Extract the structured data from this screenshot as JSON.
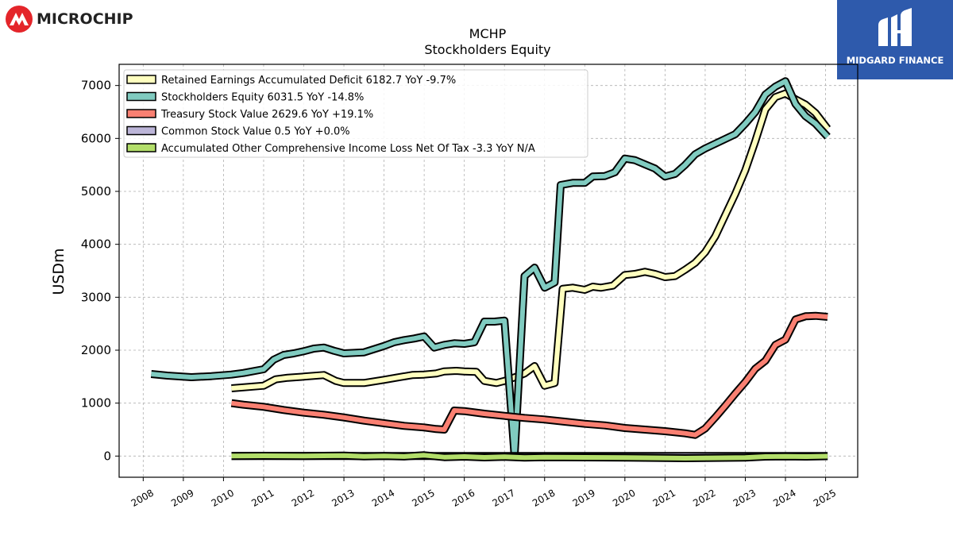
{
  "header": {
    "logo_text": "MICROCHIP",
    "brand_text": "MIDGARD FINANCE"
  },
  "colors": {
    "retained": "#ffffbf",
    "equity": "#80cbc0",
    "treasury": "#fa8072",
    "common": "#bcb5d8",
    "aoci": "#b3de6a",
    "brand_bg": "#2e5aac",
    "logo_red": "#e4252a"
  },
  "chart_data": {
    "type": "line",
    "title": "MCHP",
    "subtitle": "Stockholders  Equity",
    "xlabel": "",
    "ylabel": "USDm",
    "xlim": [
      2007.4,
      2025.8
    ],
    "ylim": [
      -400,
      7400
    ],
    "x_ticks": [
      "2008",
      "2009",
      "2010",
      "2011",
      "2012",
      "2013",
      "2014",
      "2015",
      "2016",
      "2017",
      "2018",
      "2019",
      "2020",
      "2021",
      "2022",
      "2023",
      "2024",
      "2025"
    ],
    "y_ticks": [
      0,
      1000,
      2000,
      3000,
      4000,
      5000,
      6000,
      7000
    ],
    "grid": true,
    "legend_position": "top-left",
    "series": [
      {
        "name": "Retained Earnings Accumulated Deficit  6182.7 YoY -9.7%",
        "color_key": "retained",
        "points": [
          [
            2010.2,
            1280
          ],
          [
            2011.0,
            1330
          ],
          [
            2011.3,
            1450
          ],
          [
            2011.6,
            1480
          ],
          [
            2012.0,
            1500
          ],
          [
            2012.5,
            1530
          ],
          [
            2012.8,
            1420
          ],
          [
            2013.0,
            1380
          ],
          [
            2013.5,
            1380
          ],
          [
            2014.0,
            1440
          ],
          [
            2014.3,
            1480
          ],
          [
            2014.7,
            1530
          ],
          [
            2015.0,
            1540
          ],
          [
            2015.3,
            1560
          ],
          [
            2015.5,
            1600
          ],
          [
            2015.8,
            1610
          ],
          [
            2016.0,
            1600
          ],
          [
            2016.3,
            1590
          ],
          [
            2016.5,
            1420
          ],
          [
            2016.8,
            1380
          ],
          [
            2017.0,
            1420
          ],
          [
            2017.3,
            1500
          ],
          [
            2017.5,
            1560
          ],
          [
            2017.75,
            1700
          ],
          [
            2018.0,
            1330
          ],
          [
            2018.25,
            1380
          ],
          [
            2018.45,
            3160
          ],
          [
            2018.7,
            3180
          ],
          [
            2019.0,
            3140
          ],
          [
            2019.2,
            3200
          ],
          [
            2019.4,
            3180
          ],
          [
            2019.7,
            3220
          ],
          [
            2020.0,
            3420
          ],
          [
            2020.25,
            3440
          ],
          [
            2020.5,
            3480
          ],
          [
            2020.75,
            3440
          ],
          [
            2021.0,
            3380
          ],
          [
            2021.25,
            3400
          ],
          [
            2021.5,
            3520
          ],
          [
            2021.75,
            3650
          ],
          [
            2022.0,
            3850
          ],
          [
            2022.25,
            4150
          ],
          [
            2022.5,
            4550
          ],
          [
            2022.75,
            4950
          ],
          [
            2023.0,
            5400
          ],
          [
            2023.25,
            5950
          ],
          [
            2023.5,
            6550
          ],
          [
            2023.75,
            6780
          ],
          [
            2024.0,
            6850
          ],
          [
            2024.25,
            6740
          ],
          [
            2024.5,
            6640
          ],
          [
            2024.75,
            6480
          ],
          [
            2025.05,
            6183
          ]
        ]
      },
      {
        "name": "Stockholders Equity  6031.5 YoY -14.8%",
        "color_key": "equity",
        "points": [
          [
            2008.2,
            1550
          ],
          [
            2008.6,
            1520
          ],
          [
            2009.2,
            1490
          ],
          [
            2009.7,
            1510
          ],
          [
            2010.2,
            1540
          ],
          [
            2010.5,
            1570
          ],
          [
            2011.0,
            1640
          ],
          [
            2011.25,
            1820
          ],
          [
            2011.5,
            1910
          ],
          [
            2011.75,
            1940
          ],
          [
            2012.0,
            1980
          ],
          [
            2012.25,
            2030
          ],
          [
            2012.5,
            2050
          ],
          [
            2012.75,
            1990
          ],
          [
            2013.0,
            1940
          ],
          [
            2013.5,
            1960
          ],
          [
            2014.0,
            2080
          ],
          [
            2014.25,
            2150
          ],
          [
            2014.5,
            2190
          ],
          [
            2014.75,
            2220
          ],
          [
            2015.0,
            2260
          ],
          [
            2015.25,
            2050
          ],
          [
            2015.5,
            2100
          ],
          [
            2015.75,
            2130
          ],
          [
            2016.0,
            2120
          ],
          [
            2016.25,
            2150
          ],
          [
            2016.5,
            2540
          ],
          [
            2016.75,
            2540
          ],
          [
            2017.0,
            2560
          ],
          [
            2017.25,
            0
          ],
          [
            2017.5,
            3400
          ],
          [
            2017.75,
            3560
          ],
          [
            2018.0,
            3180
          ],
          [
            2018.25,
            3280
          ],
          [
            2018.4,
            5120
          ],
          [
            2018.7,
            5160
          ],
          [
            2019.0,
            5160
          ],
          [
            2019.2,
            5280
          ],
          [
            2019.5,
            5290
          ],
          [
            2019.75,
            5360
          ],
          [
            2020.0,
            5620
          ],
          [
            2020.25,
            5590
          ],
          [
            2020.5,
            5510
          ],
          [
            2020.75,
            5430
          ],
          [
            2021.0,
            5280
          ],
          [
            2021.25,
            5330
          ],
          [
            2021.5,
            5500
          ],
          [
            2021.75,
            5700
          ],
          [
            2022.0,
            5810
          ],
          [
            2022.25,
            5900
          ],
          [
            2022.5,
            5990
          ],
          [
            2022.75,
            6080
          ],
          [
            2023.0,
            6280
          ],
          [
            2023.25,
            6500
          ],
          [
            2023.5,
            6830
          ],
          [
            2023.75,
            6980
          ],
          [
            2024.0,
            7080
          ],
          [
            2024.25,
            6650
          ],
          [
            2024.5,
            6420
          ],
          [
            2024.75,
            6280
          ],
          [
            2025.05,
            6032
          ]
        ]
      },
      {
        "name": "Treasury Stock Value  2629.6 YoY +19.1%",
        "color_key": "treasury",
        "points": [
          [
            2010.2,
            1000
          ],
          [
            2010.5,
            970
          ],
          [
            2011.0,
            930
          ],
          [
            2011.5,
            870
          ],
          [
            2012.0,
            820
          ],
          [
            2012.5,
            780
          ],
          [
            2013.0,
            730
          ],
          [
            2013.5,
            670
          ],
          [
            2014.0,
            620
          ],
          [
            2014.5,
            570
          ],
          [
            2015.0,
            540
          ],
          [
            2015.3,
            510
          ],
          [
            2015.5,
            500
          ],
          [
            2015.75,
            860
          ],
          [
            2016.0,
            850
          ],
          [
            2016.5,
            800
          ],
          [
            2017.0,
            760
          ],
          [
            2017.5,
            720
          ],
          [
            2018.0,
            690
          ],
          [
            2018.5,
            650
          ],
          [
            2019.0,
            610
          ],
          [
            2019.5,
            580
          ],
          [
            2020.0,
            530
          ],
          [
            2020.5,
            500
          ],
          [
            2021.0,
            470
          ],
          [
            2021.5,
            430
          ],
          [
            2021.75,
            400
          ],
          [
            2022.0,
            520
          ],
          [
            2022.25,
            730
          ],
          [
            2022.5,
            950
          ],
          [
            2022.75,
            1180
          ],
          [
            2023.0,
            1400
          ],
          [
            2023.25,
            1650
          ],
          [
            2023.5,
            1800
          ],
          [
            2023.75,
            2100
          ],
          [
            2024.0,
            2200
          ],
          [
            2024.25,
            2580
          ],
          [
            2024.5,
            2640
          ],
          [
            2024.75,
            2650
          ],
          [
            2025.05,
            2630
          ]
        ]
      },
      {
        "name": "Common Stock Value  0.5 YoY +0.0%",
        "color_key": "common",
        "points": [
          [
            2010.2,
            0.5
          ],
          [
            2025.05,
            0.5
          ]
        ]
      },
      {
        "name": "Accumulated Other Comprehensive Income Loss Net Of Tax  -3.3 YoY N/A",
        "color_key": "aoci",
        "points": [
          [
            2010.2,
            0
          ],
          [
            2011.0,
            5
          ],
          [
            2012.0,
            2
          ],
          [
            2013.0,
            8
          ],
          [
            2013.5,
            -5
          ],
          [
            2014.0,
            0
          ],
          [
            2014.5,
            -8
          ],
          [
            2015.0,
            15
          ],
          [
            2015.5,
            -20
          ],
          [
            2016.0,
            -10
          ],
          [
            2016.5,
            -25
          ],
          [
            2017.0,
            -15
          ],
          [
            2017.5,
            -30
          ],
          [
            2018.0,
            -20
          ],
          [
            2019.0,
            -25
          ],
          [
            2020.0,
            -30
          ],
          [
            2021.0,
            -35
          ],
          [
            2021.5,
            -40
          ],
          [
            2022.0,
            -35
          ],
          [
            2023.0,
            -30
          ],
          [
            2023.5,
            -10
          ],
          [
            2024.0,
            -5
          ],
          [
            2024.5,
            -10
          ],
          [
            2025.05,
            -3
          ]
        ]
      }
    ]
  }
}
